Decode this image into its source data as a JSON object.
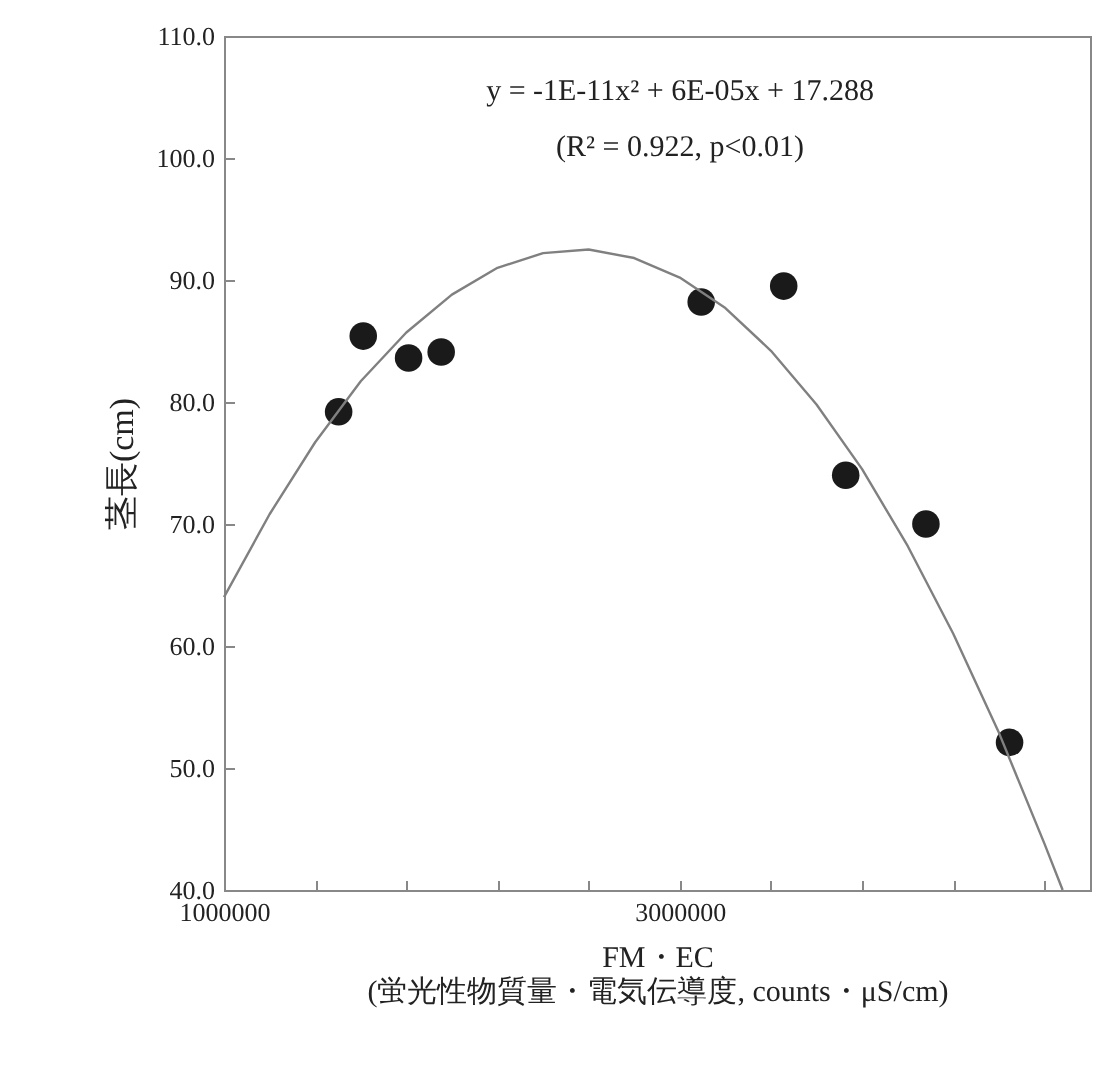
{
  "chart_data": {
    "type": "scatter",
    "xlabel": "FM・EC\n(蛍光性物質量・電気伝導度, counts・μS/cm)",
    "ylabel": "茎長(cm)",
    "annotations": [
      "y = -1E-11x² + 6E-05x + 17.288",
      "(R² = 0.922, p<0.01)"
    ],
    "xlim": [
      1000000,
      4800000
    ],
    "xticks": [
      1000000,
      {
        "value": 1400000,
        "label": null
      },
      {
        "value": 1800000,
        "label": null
      },
      {
        "value": 2200000,
        "label": null
      },
      {
        "value": 2600000,
        "label": null
      },
      3000000,
      {
        "value": 3400000,
        "label": null
      },
      {
        "value": 3800000,
        "label": null
      },
      {
        "value": 4200000,
        "label": null
      },
      {
        "value": 4600000,
        "label": null
      }
    ],
    "ylim": [
      40,
      110
    ],
    "yticks": [
      {
        "value": 40,
        "label": "40.0"
      },
      {
        "value": 50,
        "label": "50.0"
      },
      {
        "value": 60,
        "label": "60.0"
      },
      {
        "value": 70,
        "label": "70.0"
      },
      {
        "value": 80,
        "label": "80.0"
      },
      {
        "value": 90,
        "label": "90.0"
      },
      {
        "value": 100,
        "label": "100.0"
      },
      {
        "value": 110,
        "label": "110.0"
      }
    ],
    "grid": false,
    "marker": "circle",
    "series": [
      {
        "color": "#1a1a1a",
        "x": [
          1503000,
          1611000,
          1810000,
          1953000,
          3094000,
          3456000,
          3728000,
          4080000,
          4447000
        ],
        "values": [
          79.2,
          85.4,
          83.6,
          84.1,
          88.2,
          89.5,
          74.0,
          70.0,
          52.1
        ]
      },
      {
        "type": "line",
        "color": "#808080",
        "marker": "none",
        "line_style": "solid",
        "x": [
          1000000,
          1200000,
          1400000,
          1600000,
          1800000,
          2000000,
          2200000,
          2400000,
          2600000,
          2800000,
          3000000,
          3200000,
          3400000,
          3600000,
          3800000,
          4000000,
          4200000,
          4400000,
          4600000,
          4680000
        ],
        "values": [
          64.0,
          70.8,
          76.7,
          81.7,
          85.7,
          88.8,
          91.0,
          92.2,
          92.5,
          91.8,
          90.2,
          87.7,
          84.2,
          79.8,
          74.5,
          68.2,
          61.0,
          52.9,
          43.8,
          40.0
        ]
      }
    ]
  }
}
